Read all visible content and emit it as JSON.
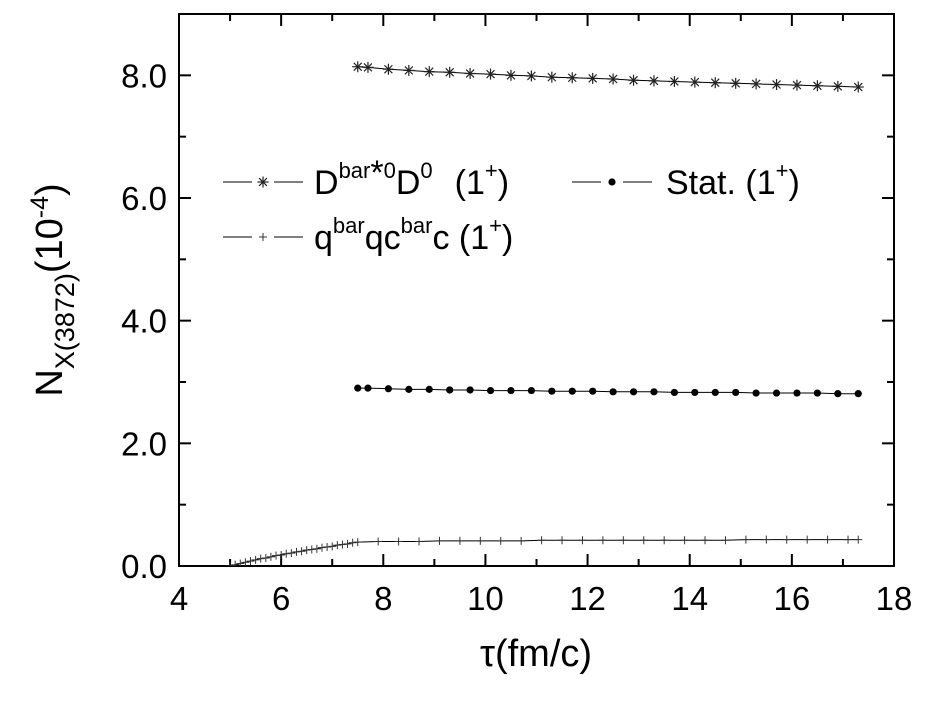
{
  "chart_data": {
    "type": "line",
    "xlabel": "τ(fm/c)",
    "ylabel": {
      "base": "N",
      "sub": "X(3872)",
      "unit_open": "(10",
      "unit_exp": "-4",
      "unit_close": ")"
    },
    "xlim": [
      4,
      18
    ],
    "ylim": [
      0,
      9
    ],
    "xticks": [
      "4",
      "6",
      "8",
      "10",
      "12",
      "14",
      "16",
      "18"
    ],
    "yticks": [
      "0.0",
      "2.0",
      "4.0",
      "6.0",
      "8.0"
    ],
    "grid": false,
    "legend_position": "middle-left",
    "series": [
      {
        "key": "dd",
        "marker": "asterisk",
        "legend": {
          "p1": "D",
          "p2": "bar",
          "p3": "*",
          "p4": "0",
          "p5": "D",
          "p6": "0",
          "p7": "(1",
          "p8": "+",
          "p9": ")"
        },
        "x": [
          7.5,
          7.7,
          8.1,
          8.5,
          8.9,
          9.3,
          9.7,
          10.1,
          10.5,
          10.9,
          11.3,
          11.7,
          12.1,
          12.5,
          12.9,
          13.3,
          13.7,
          14.1,
          14.5,
          14.9,
          15.3,
          15.7,
          16.1,
          16.5,
          16.9,
          17.3
        ],
        "y": [
          8.14,
          8.13,
          8.1,
          8.08,
          8.06,
          8.05,
          8.03,
          8.02,
          8.0,
          7.99,
          7.97,
          7.96,
          7.95,
          7.94,
          7.92,
          7.91,
          7.9,
          7.89,
          7.88,
          7.87,
          7.86,
          7.85,
          7.84,
          7.83,
          7.82,
          7.81
        ]
      },
      {
        "key": "stat",
        "marker": "dot",
        "legend": {
          "p1": "Stat. (1",
          "p2": "+",
          "p3": ")"
        },
        "x": [
          7.5,
          7.7,
          8.1,
          8.5,
          8.9,
          9.3,
          9.7,
          10.1,
          10.5,
          10.9,
          11.3,
          11.7,
          12.1,
          12.5,
          12.9,
          13.3,
          13.7,
          14.1,
          14.5,
          14.9,
          15.3,
          15.7,
          16.1,
          16.5,
          16.9,
          17.3
        ],
        "y": [
          2.9,
          2.9,
          2.89,
          2.88,
          2.88,
          2.87,
          2.87,
          2.86,
          2.86,
          2.86,
          2.85,
          2.85,
          2.85,
          2.84,
          2.84,
          2.84,
          2.83,
          2.83,
          2.83,
          2.83,
          2.82,
          2.82,
          2.82,
          2.82,
          2.81,
          2.81
        ]
      },
      {
        "key": "qq",
        "marker": "plus",
        "legend": {
          "p1": "q",
          "p2": "bar",
          "p3": "qc",
          "p4": "bar",
          "p5": "c (1",
          "p6": "+",
          "p7": ")"
        },
        "x": [
          5.0,
          5.1,
          5.2,
          5.3,
          5.4,
          5.5,
          5.6,
          5.7,
          5.8,
          5.9,
          6.0,
          6.1,
          6.2,
          6.3,
          6.4,
          6.5,
          6.6,
          6.7,
          6.8,
          6.9,
          7.0,
          7.1,
          7.2,
          7.3,
          7.4,
          7.5,
          7.9,
          8.3,
          8.7,
          9.1,
          9.5,
          9.9,
          10.3,
          10.7,
          11.1,
          11.5,
          11.9,
          12.3,
          12.7,
          13.1,
          13.5,
          13.9,
          14.3,
          14.7,
          15.1,
          15.5,
          15.9,
          16.3,
          16.7,
          17.1,
          17.3
        ],
        "y": [
          0.0,
          0.02,
          0.04,
          0.06,
          0.08,
          0.1,
          0.12,
          0.13,
          0.15,
          0.17,
          0.18,
          0.2,
          0.21,
          0.23,
          0.24,
          0.26,
          0.27,
          0.28,
          0.3,
          0.31,
          0.32,
          0.34,
          0.35,
          0.36,
          0.38,
          0.39,
          0.4,
          0.4,
          0.4,
          0.41,
          0.41,
          0.41,
          0.41,
          0.41,
          0.42,
          0.42,
          0.42,
          0.42,
          0.42,
          0.42,
          0.42,
          0.42,
          0.42,
          0.42,
          0.43,
          0.43,
          0.43,
          0.43,
          0.43,
          0.43,
          0.43
        ]
      }
    ]
  }
}
